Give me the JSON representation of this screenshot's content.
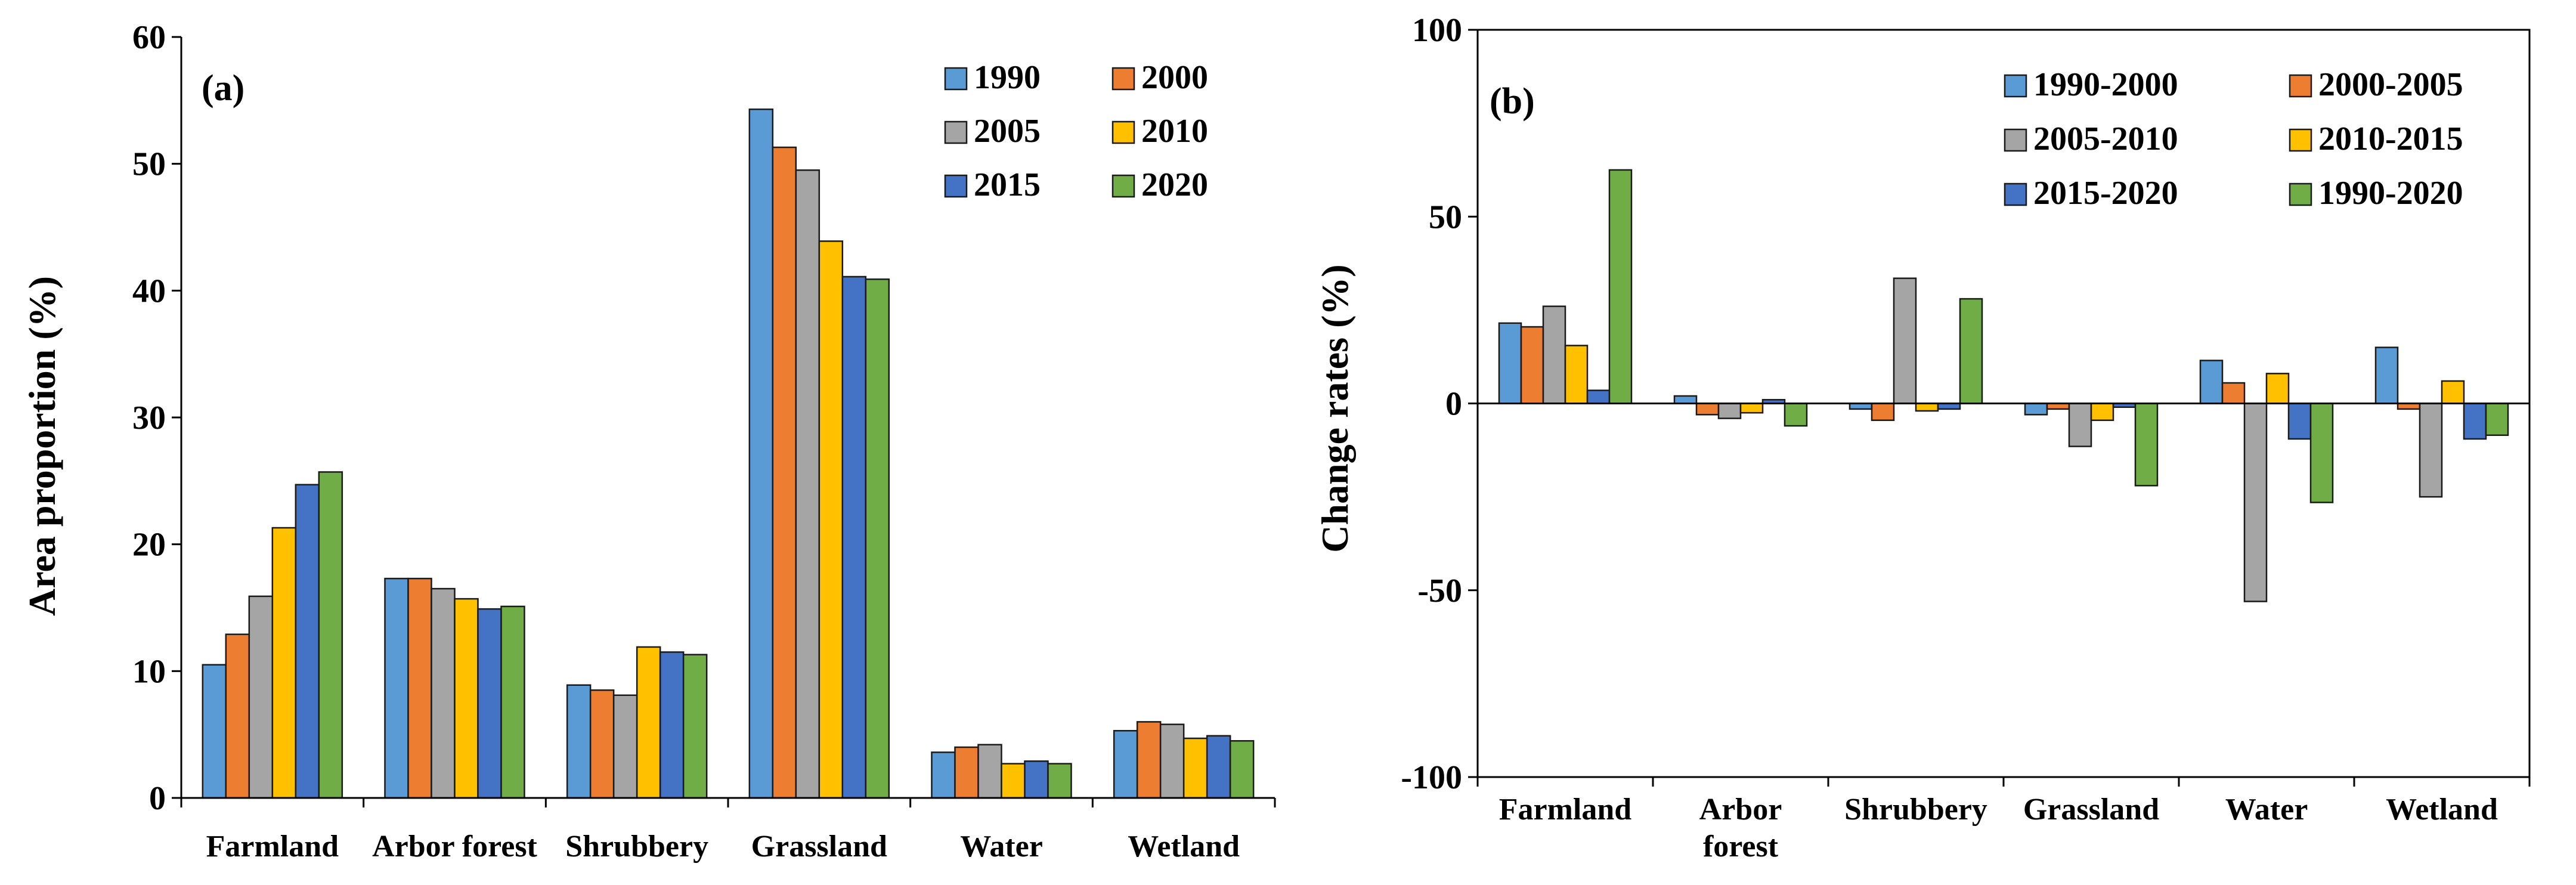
{
  "chart_data": [
    {
      "type": "bar",
      "panel_label": "(a)",
      "ylabel": "Area proportion (%)",
      "xlabel": "",
      "ylim": [
        0,
        60
      ],
      "yticks": [
        "0",
        "10",
        "20",
        "30",
        "40",
        "50",
        "60"
      ],
      "categories": [
        "Farmland",
        "Arbor forest",
        "Shrubbery",
        "Grassland",
        "Water",
        "Wetland"
      ],
      "legend_position": "top-right",
      "series": [
        {
          "name": "1990",
          "color": "#5B9BD5",
          "values": [
            10.5,
            17.3,
            8.9,
            54.3,
            3.6,
            5.3
          ]
        },
        {
          "name": "2000",
          "color": "#ED7D31",
          "values": [
            12.9,
            17.3,
            8.5,
            51.3,
            4.0,
            6.0
          ]
        },
        {
          "name": "2005",
          "color": "#A5A5A5",
          "values": [
            15.9,
            16.5,
            8.1,
            49.5,
            4.2,
            5.8
          ]
        },
        {
          "name": "2010",
          "color": "#FFC000",
          "values": [
            21.3,
            15.7,
            11.9,
            43.9,
            2.7,
            4.7
          ]
        },
        {
          "name": "2015",
          "color": "#4472C4",
          "values": [
            24.7,
            14.9,
            11.5,
            41.1,
            2.9,
            4.9
          ]
        },
        {
          "name": "2020",
          "color": "#70AD47",
          "values": [
            25.7,
            15.1,
            11.3,
            40.9,
            2.7,
            4.5
          ]
        }
      ]
    },
    {
      "type": "bar",
      "panel_label": "(b)",
      "ylabel": "Change rates (%)",
      "xlabel": "",
      "ylim": [
        -100,
        100
      ],
      "yticks": [
        "-100",
        "-50",
        "0",
        "50",
        "100"
      ],
      "categories": [
        "Farmland",
        "Arbor forest",
        "Shrubbery",
        "Grassland",
        "Water",
        "Wetland"
      ],
      "legend_position": "top-right",
      "series": [
        {
          "name": "1990-2000",
          "color": "#5B9BD5",
          "values": [
            21.5,
            2.0,
            -1.5,
            -3.0,
            11.5,
            15.0
          ]
        },
        {
          "name": "2000-2005",
          "color": "#ED7D31",
          "values": [
            20.5,
            -3.0,
            -4.5,
            -1.5,
            5.5,
            -1.5
          ]
        },
        {
          "name": "2005-2010",
          "color": "#A5A5A5",
          "values": [
            26.0,
            -4.0,
            33.5,
            -11.5,
            -53.0,
            -25.0
          ]
        },
        {
          "name": "2010-2015",
          "color": "#FFC000",
          "values": [
            15.5,
            -2.5,
            -2.0,
            -4.5,
            8.0,
            6.0
          ]
        },
        {
          "name": "2015-2020",
          "color": "#4472C4",
          "values": [
            3.5,
            1.0,
            -1.5,
            -1.0,
            -9.5,
            -9.5
          ]
        },
        {
          "name": "1990-2020",
          "color": "#70AD47",
          "values": [
            62.5,
            -6.0,
            28.0,
            -22.0,
            -26.5,
            -8.5
          ]
        }
      ]
    }
  ]
}
